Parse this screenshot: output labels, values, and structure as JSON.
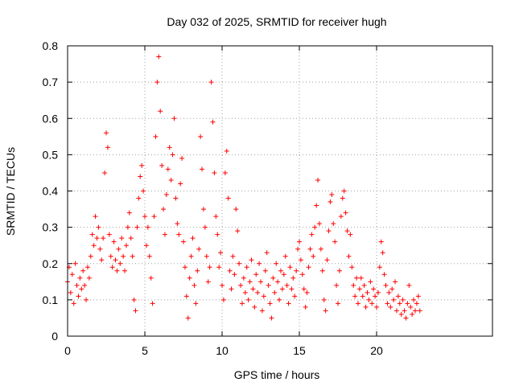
{
  "chart_data": {
    "type": "scatter",
    "title": "Day 032 of 2025, SRMTID for receiver hugh",
    "xlabel": "GPS time / hours",
    "ylabel": "SRMTID / TECUs",
    "xlim": [
      0,
      27.5
    ],
    "ylim": [
      0,
      0.8
    ],
    "x_ticks": [
      0,
      5,
      10,
      15,
      20
    ],
    "y_ticks": [
      0,
      0.1,
      0.2,
      0.3,
      0.4,
      0.5,
      0.6,
      0.7,
      0.8
    ],
    "x_tick_labels": [
      "0",
      "5",
      "10",
      "15",
      "20"
    ],
    "y_tick_labels": [
      "0",
      "0.1",
      "0.2",
      "0.3",
      "0.4",
      "0.5",
      "0.6",
      "0.7",
      "0.8"
    ],
    "grid": true,
    "marker": "+",
    "color": "#ff0000",
    "series": [
      {
        "name": "SRMTID",
        "points": [
          [
            0.0,
            0.15
          ],
          [
            0.1,
            0.19
          ],
          [
            0.2,
            0.12
          ],
          [
            0.3,
            0.17
          ],
          [
            0.4,
            0.09
          ],
          [
            0.5,
            0.2
          ],
          [
            0.6,
            0.14
          ],
          [
            0.7,
            0.11
          ],
          [
            0.8,
            0.16
          ],
          [
            0.9,
            0.13
          ],
          [
            1.0,
            0.18
          ],
          [
            1.1,
            0.14
          ],
          [
            1.2,
            0.1
          ],
          [
            1.3,
            0.19
          ],
          [
            1.4,
            0.16
          ],
          [
            1.5,
            0.22
          ],
          [
            1.6,
            0.28
          ],
          [
            1.7,
            0.25
          ],
          [
            1.8,
            0.33
          ],
          [
            1.9,
            0.27
          ],
          [
            2.0,
            0.3
          ],
          [
            2.1,
            0.24
          ],
          [
            2.2,
            0.21
          ],
          [
            2.3,
            0.27
          ],
          [
            2.4,
            0.45
          ],
          [
            2.5,
            0.56
          ],
          [
            2.6,
            0.52
          ],
          [
            2.7,
            0.28
          ],
          [
            2.8,
            0.22
          ],
          [
            2.9,
            0.19
          ],
          [
            3.0,
            0.26
          ],
          [
            3.1,
            0.21
          ],
          [
            3.2,
            0.18
          ],
          [
            3.3,
            0.24
          ],
          [
            3.4,
            0.2
          ],
          [
            3.5,
            0.27
          ],
          [
            3.6,
            0.22
          ],
          [
            3.7,
            0.18
          ],
          [
            3.8,
            0.25
          ],
          [
            3.9,
            0.3
          ],
          [
            4.0,
            0.34
          ],
          [
            4.1,
            0.27
          ],
          [
            4.2,
            0.22
          ],
          [
            4.3,
            0.1
          ],
          [
            4.4,
            0.07
          ],
          [
            4.5,
            0.3
          ],
          [
            4.6,
            0.38
          ],
          [
            4.7,
            0.44
          ],
          [
            4.8,
            0.47
          ],
          [
            4.9,
            0.4
          ],
          [
            5.0,
            0.33
          ],
          [
            5.1,
            0.25
          ],
          [
            5.2,
            0.3
          ],
          [
            5.3,
            0.22
          ],
          [
            5.4,
            0.16
          ],
          [
            5.5,
            0.09
          ],
          [
            5.6,
            0.33
          ],
          [
            5.7,
            0.55
          ],
          [
            5.8,
            0.7
          ],
          [
            5.9,
            0.77
          ],
          [
            6.0,
            0.62
          ],
          [
            6.1,
            0.47
          ],
          [
            6.2,
            0.35
          ],
          [
            6.3,
            0.28
          ],
          [
            6.4,
            0.39
          ],
          [
            6.5,
            0.46
          ],
          [
            6.6,
            0.52
          ],
          [
            6.7,
            0.43
          ],
          [
            6.8,
            0.5
          ],
          [
            6.9,
            0.6
          ],
          [
            7.0,
            0.38
          ],
          [
            7.1,
            0.31
          ],
          [
            7.2,
            0.28
          ],
          [
            7.3,
            0.42
          ],
          [
            7.4,
            0.49
          ],
          [
            7.5,
            0.26
          ],
          [
            7.6,
            0.19
          ],
          [
            7.7,
            0.11
          ],
          [
            7.8,
            0.05
          ],
          [
            7.9,
            0.16
          ],
          [
            8.0,
            0.22
          ],
          [
            8.1,
            0.27
          ],
          [
            8.2,
            0.14
          ],
          [
            8.3,
            0.09
          ],
          [
            8.4,
            0.18
          ],
          [
            8.5,
            0.24
          ],
          [
            8.6,
            0.55
          ],
          [
            8.7,
            0.46
          ],
          [
            8.8,
            0.35
          ],
          [
            8.9,
            0.3
          ],
          [
            9.0,
            0.22
          ],
          [
            9.1,
            0.15
          ],
          [
            9.2,
            0.19
          ],
          [
            9.3,
            0.7
          ],
          [
            9.4,
            0.59
          ],
          [
            9.5,
            0.45
          ],
          [
            9.6,
            0.33
          ],
          [
            9.7,
            0.28
          ],
          [
            9.8,
            0.19
          ],
          [
            9.9,
            0.23
          ],
          [
            10.0,
            0.14
          ],
          [
            10.1,
            0.1
          ],
          [
            10.2,
            0.45
          ],
          [
            10.3,
            0.51
          ],
          [
            10.4,
            0.38
          ],
          [
            10.5,
            0.18
          ],
          [
            10.6,
            0.13
          ],
          [
            10.7,
            0.22
          ],
          [
            10.8,
            0.17
          ],
          [
            10.9,
            0.35
          ],
          [
            11.0,
            0.29
          ],
          [
            11.1,
            0.2
          ],
          [
            11.2,
            0.14
          ],
          [
            11.3,
            0.09
          ],
          [
            11.4,
            0.16
          ],
          [
            11.5,
            0.12
          ],
          [
            11.6,
            0.19
          ],
          [
            11.7,
            0.1
          ],
          [
            11.8,
            0.15
          ],
          [
            11.9,
            0.21
          ],
          [
            12.0,
            0.13
          ],
          [
            12.1,
            0.08
          ],
          [
            12.2,
            0.17
          ],
          [
            12.3,
            0.12
          ],
          [
            12.4,
            0.2
          ],
          [
            12.5,
            0.15
          ],
          [
            12.6,
            0.07
          ],
          [
            12.7,
            0.11
          ],
          [
            12.8,
            0.18
          ],
          [
            12.9,
            0.23
          ],
          [
            13.0,
            0.14
          ],
          [
            13.1,
            0.09
          ],
          [
            13.2,
            0.05
          ],
          [
            13.3,
            0.16
          ],
          [
            13.4,
            0.12
          ],
          [
            13.5,
            0.2
          ],
          [
            13.6,
            0.15
          ],
          [
            13.7,
            0.1
          ],
          [
            13.8,
            0.18
          ],
          [
            13.9,
            0.13
          ],
          [
            14.0,
            0.17
          ],
          [
            14.1,
            0.22
          ],
          [
            14.2,
            0.14
          ],
          [
            14.3,
            0.09
          ],
          [
            14.4,
            0.19
          ],
          [
            14.5,
            0.13
          ],
          [
            14.6,
            0.16
          ],
          [
            14.7,
            0.11
          ],
          [
            14.8,
            0.18
          ],
          [
            14.9,
            0.24
          ],
          [
            15.0,
            0.26
          ],
          [
            15.1,
            0.21
          ],
          [
            15.2,
            0.17
          ],
          [
            15.3,
            0.13
          ],
          [
            15.4,
            0.08
          ],
          [
            15.5,
            0.12
          ],
          [
            15.6,
            0.19
          ],
          [
            15.7,
            0.24
          ],
          [
            15.8,
            0.28
          ],
          [
            15.9,
            0.22
          ],
          [
            16.0,
            0.3
          ],
          [
            16.1,
            0.36
          ],
          [
            16.2,
            0.43
          ],
          [
            16.3,
            0.31
          ],
          [
            16.4,
            0.24
          ],
          [
            16.5,
            0.18
          ],
          [
            16.6,
            0.1
          ],
          [
            16.7,
            0.07
          ],
          [
            16.8,
            0.21
          ],
          [
            16.9,
            0.29
          ],
          [
            17.0,
            0.37
          ],
          [
            17.1,
            0.39
          ],
          [
            17.2,
            0.31
          ],
          [
            17.3,
            0.26
          ],
          [
            17.4,
            0.14
          ],
          [
            17.5,
            0.09
          ],
          [
            17.6,
            0.18
          ],
          [
            17.7,
            0.33
          ],
          [
            17.8,
            0.38
          ],
          [
            17.9,
            0.4
          ],
          [
            18.0,
            0.34
          ],
          [
            18.1,
            0.29
          ],
          [
            18.2,
            0.22
          ],
          [
            18.3,
            0.28
          ],
          [
            18.4,
            0.19
          ],
          [
            18.5,
            0.14
          ],
          [
            18.6,
            0.11
          ],
          [
            18.7,
            0.16
          ],
          [
            18.8,
            0.09
          ],
          [
            18.9,
            0.13
          ],
          [
            19.0,
            0.16
          ],
          [
            19.1,
            0.11
          ],
          [
            19.2,
            0.14
          ],
          [
            19.3,
            0.08
          ],
          [
            19.4,
            0.12
          ],
          [
            19.5,
            0.1
          ],
          [
            19.6,
            0.15
          ],
          [
            19.7,
            0.09
          ],
          [
            19.8,
            0.13
          ],
          [
            19.9,
            0.11
          ],
          [
            20.0,
            0.08
          ],
          [
            20.1,
            0.12
          ],
          [
            20.2,
            0.19
          ],
          [
            20.3,
            0.26
          ],
          [
            20.4,
            0.23
          ],
          [
            20.5,
            0.17
          ],
          [
            20.6,
            0.14
          ],
          [
            20.7,
            0.09
          ],
          [
            20.8,
            0.12
          ],
          [
            20.9,
            0.08
          ],
          [
            21.0,
            0.13
          ],
          [
            21.1,
            0.1
          ],
          [
            21.2,
            0.15
          ],
          [
            21.3,
            0.07
          ],
          [
            21.4,
            0.11
          ],
          [
            21.5,
            0.09
          ],
          [
            21.6,
            0.06
          ],
          [
            21.7,
            0.1
          ],
          [
            21.8,
            0.07
          ],
          [
            21.9,
            0.05
          ],
          [
            22.0,
            0.09
          ],
          [
            22.1,
            0.14
          ],
          [
            22.2,
            0.08
          ],
          [
            22.3,
            0.06
          ],
          [
            22.4,
            0.1
          ],
          [
            22.5,
            0.07
          ],
          [
            22.6,
            0.09
          ],
          [
            22.7,
            0.11
          ],
          [
            22.8,
            0.07
          ]
        ]
      }
    ]
  }
}
